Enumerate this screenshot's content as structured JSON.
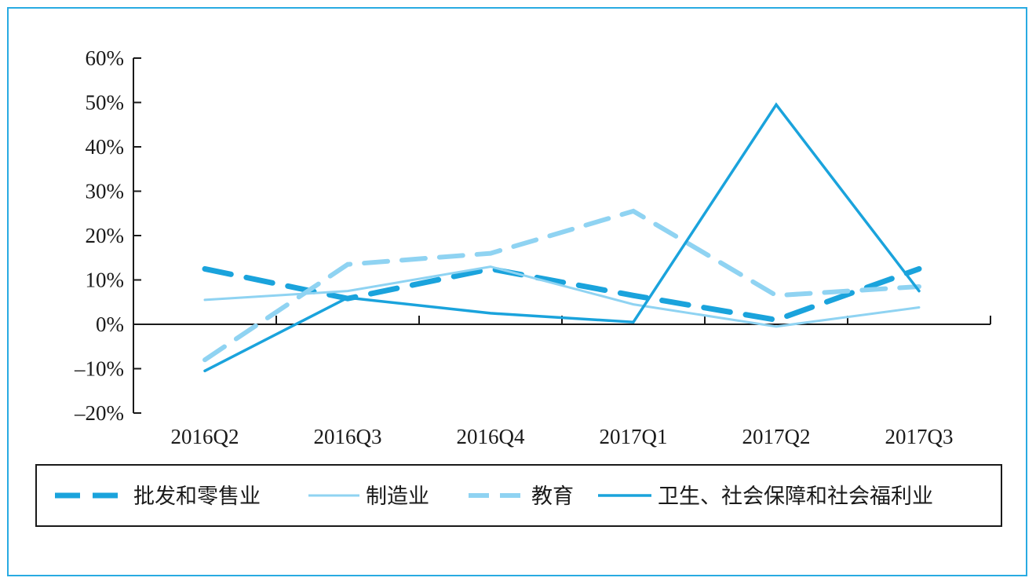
{
  "colors": {
    "frame": "#29abe2",
    "axis": "#1a1a1a",
    "retail": "#1aa3dc",
    "manufacturing": "#8fd3f2",
    "education": "#8fd3f2",
    "health": "#1aa3dc"
  },
  "chart_data": {
    "type": "line",
    "categories": [
      "2016Q2",
      "2016Q3",
      "2016Q4",
      "2017Q1",
      "2017Q2",
      "2017Q3"
    ],
    "ylim": [
      -20,
      60
    ],
    "yticks": [
      60,
      50,
      40,
      30,
      20,
      10,
      0,
      -10,
      -20
    ],
    "ytick_labels": [
      "60%",
      "50%",
      "40%",
      "30%",
      "20%",
      "10%",
      "0%",
      "–10%",
      "–20%"
    ],
    "y_unit": "%",
    "legend_position": "bottom",
    "series": [
      {
        "name": "批发和零售业",
        "style": "dashed-thick",
        "color": "#1aa3dc",
        "values": [
          12.5,
          5.8,
          12.5,
          6.5,
          1.0,
          12.5
        ]
      },
      {
        "name": "制造业",
        "style": "solid-thin",
        "color": "#8fd3f2",
        "values": [
          5.5,
          7.5,
          13.0,
          4.5,
          -0.5,
          3.8
        ]
      },
      {
        "name": "教育",
        "style": "dashed-medium",
        "color": "#8fd3f2",
        "values": [
          -8.0,
          13.5,
          16.0,
          25.5,
          6.5,
          8.5
        ]
      },
      {
        "name": "卫生、社会保障和社会福利业",
        "style": "solid-medium",
        "color": "#1aa3dc",
        "values": [
          -10.5,
          6.0,
          2.5,
          0.5,
          49.5,
          7.5
        ]
      }
    ]
  }
}
